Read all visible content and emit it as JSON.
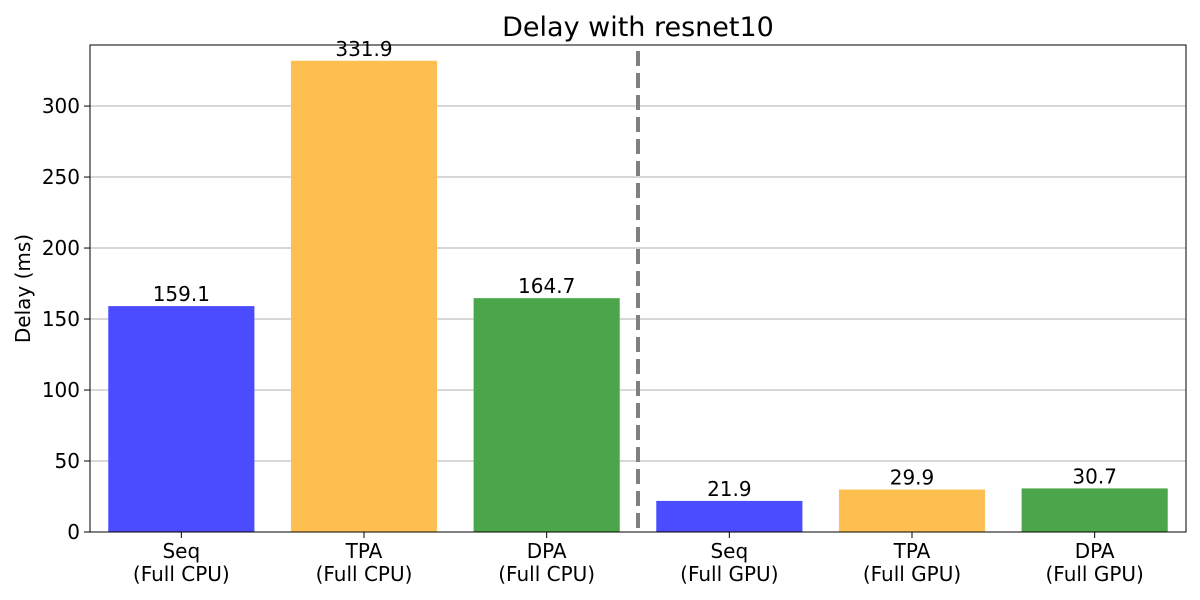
{
  "chart_data": {
    "type": "bar",
    "title": "Delay with resnet10",
    "ylabel": "Delay (ms)",
    "xlabel": "",
    "ylim": [
      0,
      343
    ],
    "yticks": [
      0,
      50,
      100,
      150,
      200,
      250,
      300
    ],
    "grid": "horizontal",
    "categories": [
      [
        "Seq",
        "(Full CPU)"
      ],
      [
        "TPA",
        "(Full CPU)"
      ],
      [
        "DPA",
        "(Full CPU)"
      ],
      [
        "Seq",
        "(Full GPU)"
      ],
      [
        "TPA",
        "(Full GPU)"
      ],
      [
        "DPA",
        "(Full GPU)"
      ]
    ],
    "values": [
      159.1,
      331.9,
      164.7,
      21.9,
      29.9,
      30.7
    ],
    "data_labels": [
      "159.1",
      "331.9",
      "164.7",
      "21.9",
      "29.9",
      "30.7"
    ],
    "bar_colors": [
      "#4b4bff",
      "#fdbf4f",
      "#4ba64b",
      "#4b4bff",
      "#fdbf4f",
      "#4ba64b"
    ],
    "divider": {
      "after_category_index": 2,
      "style": "dashed",
      "color": "#808080"
    }
  }
}
